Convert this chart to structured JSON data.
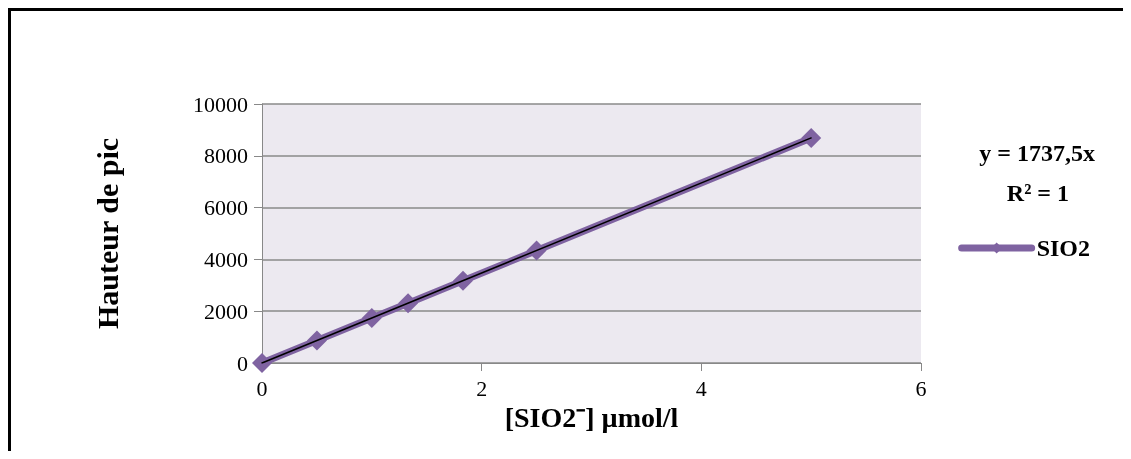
{
  "chart_data": {
    "type": "line",
    "xlabel": "[SIO2⁻] µmol/l",
    "ylabel": "Hauteur de pic",
    "x": [
      0,
      0.5,
      1,
      1.33,
      1.83,
      2.5,
      5
    ],
    "series": [
      {
        "name": "SIO2",
        "color": "#7f63a1",
        "values": [
          0,
          870,
          1740,
          2310,
          3180,
          4340,
          8690
        ],
        "marker": "diamond"
      },
      {
        "type": "line",
        "x": [
          0,
          5
        ],
        "values": [
          0,
          8690
        ],
        "color": "#000000",
        "marker": "none"
      }
    ],
    "annotations": [
      "y = 1737,5x",
      "R² = 1"
    ],
    "xlim": [
      0,
      6
    ],
    "xticks": [
      0,
      2,
      4,
      6
    ],
    "ylim": [
      0,
      10000
    ],
    "yticks": [
      0,
      2000,
      4000,
      6000,
      8000,
      10000
    ],
    "grid": "y",
    "legend": "right",
    "line_style": "solid"
  }
}
